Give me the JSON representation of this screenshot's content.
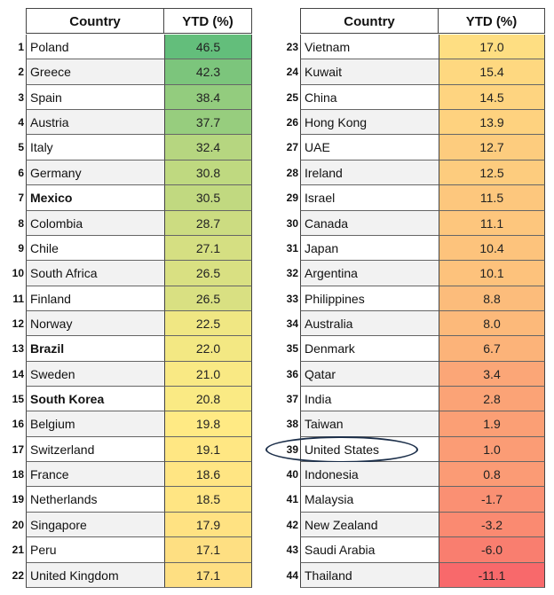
{
  "chart_data": {
    "type": "table",
    "columns": [
      "Country",
      "YTD (%)"
    ],
    "rows": [
      {
        "rank": "1",
        "country": "Poland",
        "ytd": 46.5,
        "ytd_label": "46.5",
        "bold": false
      },
      {
        "rank": "2",
        "country": "Greece",
        "ytd": 42.3,
        "ytd_label": "42.3",
        "bold": false
      },
      {
        "rank": "3",
        "country": "Spain",
        "ytd": 38.4,
        "ytd_label": "38.4",
        "bold": false
      },
      {
        "rank": "4",
        "country": "Austria",
        "ytd": 37.7,
        "ytd_label": "37.7",
        "bold": false
      },
      {
        "rank": "5",
        "country": "Italy",
        "ytd": 32.4,
        "ytd_label": "32.4",
        "bold": false
      },
      {
        "rank": "6",
        "country": "Germany",
        "ytd": 30.8,
        "ytd_label": "30.8",
        "bold": false
      },
      {
        "rank": "7",
        "country": "Mexico",
        "ytd": 30.5,
        "ytd_label": "30.5",
        "bold": true
      },
      {
        "rank": "8",
        "country": "Colombia",
        "ytd": 28.7,
        "ytd_label": "28.7",
        "bold": false
      },
      {
        "rank": "9",
        "country": "Chile",
        "ytd": 27.1,
        "ytd_label": "27.1",
        "bold": false
      },
      {
        "rank": "10",
        "country": "South Africa",
        "ytd": 26.5,
        "ytd_label": "26.5",
        "bold": false
      },
      {
        "rank": "11",
        "country": "Finland",
        "ytd": 26.5,
        "ytd_label": "26.5",
        "bold": false
      },
      {
        "rank": "12",
        "country": "Norway",
        "ytd": 22.5,
        "ytd_label": "22.5",
        "bold": false
      },
      {
        "rank": "13",
        "country": "Brazil",
        "ytd": 22.0,
        "ytd_label": "22.0",
        "bold": true
      },
      {
        "rank": "14",
        "country": "Sweden",
        "ytd": 21.0,
        "ytd_label": "21.0",
        "bold": false
      },
      {
        "rank": "15",
        "country": "South Korea",
        "ytd": 20.8,
        "ytd_label": "20.8",
        "bold": true
      },
      {
        "rank": "16",
        "country": "Belgium",
        "ytd": 19.8,
        "ytd_label": "19.8",
        "bold": false
      },
      {
        "rank": "17",
        "country": "Switzerland",
        "ytd": 19.1,
        "ytd_label": "19.1",
        "bold": false
      },
      {
        "rank": "18",
        "country": "France",
        "ytd": 18.6,
        "ytd_label": "18.6",
        "bold": false
      },
      {
        "rank": "19",
        "country": "Netherlands",
        "ytd": 18.5,
        "ytd_label": "18.5",
        "bold": false
      },
      {
        "rank": "20",
        "country": "Singapore",
        "ytd": 17.9,
        "ytd_label": "17.9",
        "bold": false
      },
      {
        "rank": "21",
        "country": "Peru",
        "ytd": 17.1,
        "ytd_label": "17.1",
        "bold": false
      },
      {
        "rank": "22",
        "country": "United Kingdom",
        "ytd": 17.1,
        "ytd_label": "17.1",
        "bold": false
      },
      {
        "rank": "23",
        "country": "Vietnam",
        "ytd": 17.0,
        "ytd_label": "17.0",
        "bold": false
      },
      {
        "rank": "24",
        "country": "Kuwait",
        "ytd": 15.4,
        "ytd_label": "15.4",
        "bold": false
      },
      {
        "rank": "25",
        "country": "China",
        "ytd": 14.5,
        "ytd_label": "14.5",
        "bold": false
      },
      {
        "rank": "26",
        "country": "Hong Kong",
        "ytd": 13.9,
        "ytd_label": "13.9",
        "bold": false
      },
      {
        "rank": "27",
        "country": "UAE",
        "ytd": 12.7,
        "ytd_label": "12.7",
        "bold": false
      },
      {
        "rank": "28",
        "country": "Ireland",
        "ytd": 12.5,
        "ytd_label": "12.5",
        "bold": false
      },
      {
        "rank": "29",
        "country": "Israel",
        "ytd": 11.5,
        "ytd_label": "11.5",
        "bold": false
      },
      {
        "rank": "30",
        "country": "Canada",
        "ytd": 11.1,
        "ytd_label": "11.1",
        "bold": false
      },
      {
        "rank": "31",
        "country": "Japan",
        "ytd": 10.4,
        "ytd_label": "10.4",
        "bold": false
      },
      {
        "rank": "32",
        "country": "Argentina",
        "ytd": 10.1,
        "ytd_label": "10.1",
        "bold": false
      },
      {
        "rank": "33",
        "country": "Philippines",
        "ytd": 8.8,
        "ytd_label": "8.8",
        "bold": false
      },
      {
        "rank": "34",
        "country": "Australia",
        "ytd": 8.0,
        "ytd_label": "8.0",
        "bold": false
      },
      {
        "rank": "35",
        "country": "Denmark",
        "ytd": 6.7,
        "ytd_label": "6.7",
        "bold": false
      },
      {
        "rank": "36",
        "country": "Qatar",
        "ytd": 3.4,
        "ytd_label": "3.4",
        "bold": false
      },
      {
        "rank": "37",
        "country": "India",
        "ytd": 2.8,
        "ytd_label": "2.8",
        "bold": false
      },
      {
        "rank": "38",
        "country": "Taiwan",
        "ytd": 1.9,
        "ytd_label": "1.9",
        "bold": false
      },
      {
        "rank": "39",
        "country": "United States",
        "ytd": 1.0,
        "ytd_label": "1.0",
        "bold": false,
        "circled": true
      },
      {
        "rank": "40",
        "country": "Indonesia",
        "ytd": 0.8,
        "ytd_label": "0.8",
        "bold": false
      },
      {
        "rank": "41",
        "country": "Malaysia",
        "ytd": -1.7,
        "ytd_label": "-1.7",
        "bold": false
      },
      {
        "rank": "42",
        "country": "New Zealand",
        "ytd": -3.2,
        "ytd_label": "-3.2",
        "bold": false
      },
      {
        "rank": "43",
        "country": "Saudi Arabia",
        "ytd": -6.0,
        "ytd_label": "-6.0",
        "bold": false
      },
      {
        "rank": "44",
        "country": "Thailand",
        "ytd": -11.1,
        "ytd_label": "-11.1",
        "bold": false
      }
    ],
    "color_scale": {
      "high_color": "#63be7b",
      "mid_color": "#ffeb84",
      "low_color": "#f8696b",
      "mid_value": 20
    }
  }
}
